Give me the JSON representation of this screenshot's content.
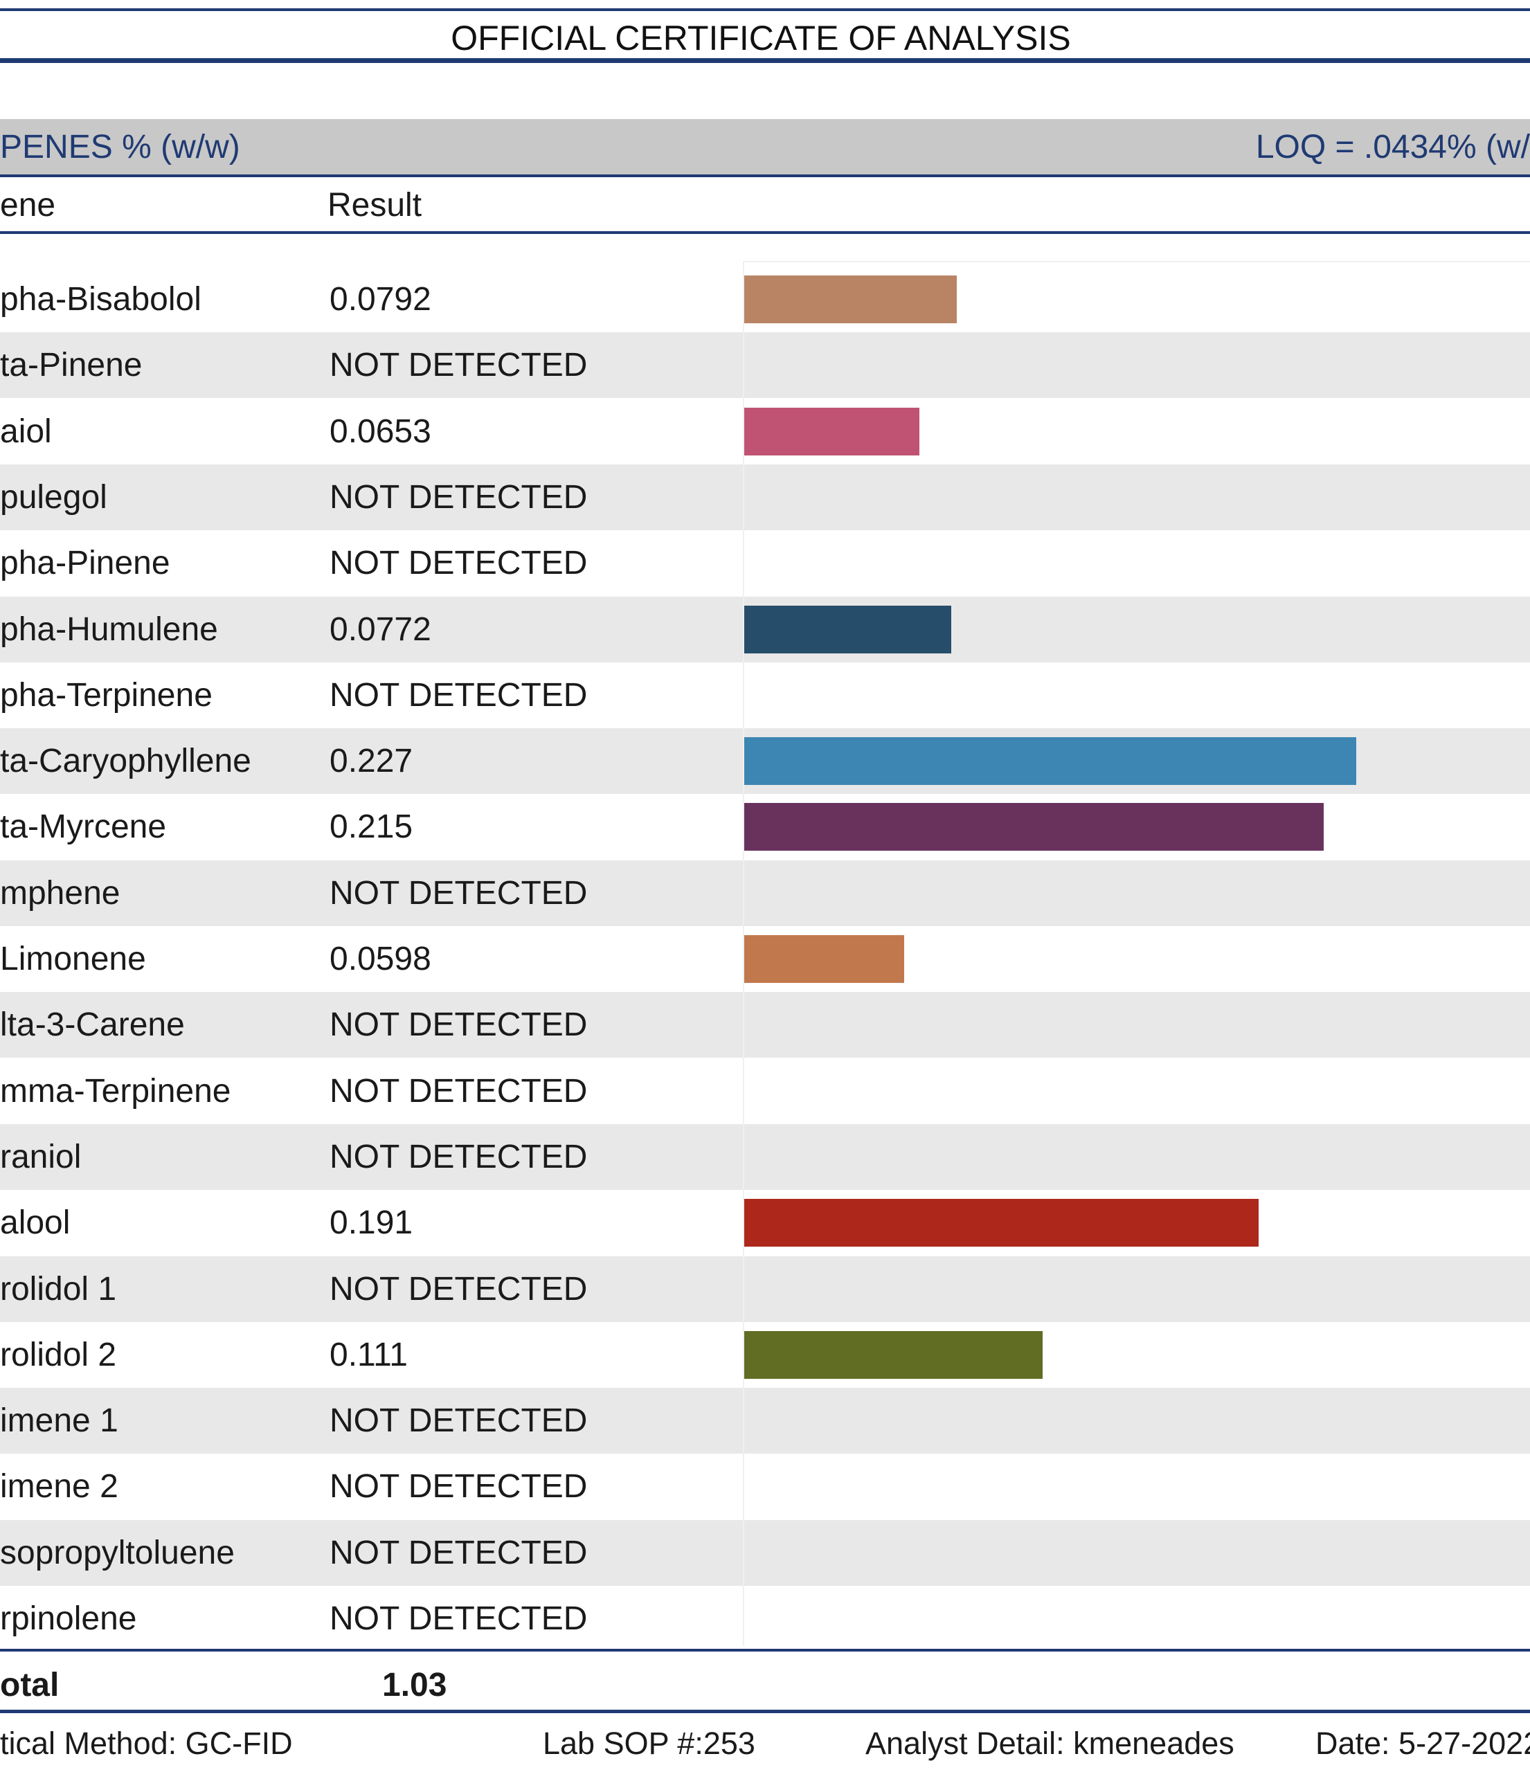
{
  "title": "OFFICIAL CERTIFICATE OF ANALYSIS",
  "section": {
    "label": "PENES % (w/w)",
    "loq": "LOQ = .0434% (w/"
  },
  "columns": {
    "name": "ene",
    "result": "Result"
  },
  "rows": [
    {
      "name": "pha-Bisabolol",
      "result": "0.0792",
      "value": 0.0792,
      "color": "#b88464"
    },
    {
      "name": "ta-Pinene",
      "result": "NOT DETECTED",
      "value": 0,
      "color": ""
    },
    {
      "name": "aiol",
      "result": "0.0653",
      "value": 0.0653,
      "color": "#c05373"
    },
    {
      "name": "pulegol",
      "result": "NOT DETECTED",
      "value": 0,
      "color": ""
    },
    {
      "name": "pha-Pinene",
      "result": "NOT DETECTED",
      "value": 0,
      "color": ""
    },
    {
      "name": "pha-Humulene",
      "result": "0.0772",
      "value": 0.0772,
      "color": "#264e6a"
    },
    {
      "name": "pha-Terpinene",
      "result": "NOT DETECTED",
      "value": 0,
      "color": ""
    },
    {
      "name": "ta-Caryophyllene",
      "result": "0.227",
      "value": 0.227,
      "color": "#3d85b2"
    },
    {
      "name": "ta-Myrcene",
      "result": "0.215",
      "value": 0.215,
      "color": "#68325d"
    },
    {
      "name": "mphene",
      "result": "NOT DETECTED",
      "value": 0,
      "color": ""
    },
    {
      "name": "Limonene",
      "result": "0.0598",
      "value": 0.0598,
      "color": "#c2784d"
    },
    {
      "name": "lta-3-Carene",
      "result": "NOT DETECTED",
      "value": 0,
      "color": ""
    },
    {
      "name": "mma-Terpinene",
      "result": "NOT DETECTED",
      "value": 0,
      "color": ""
    },
    {
      "name": "raniol",
      "result": "NOT DETECTED",
      "value": 0,
      "color": ""
    },
    {
      "name": "alool",
      "result": "0.191",
      "value": 0.191,
      "color": "#ad271b"
    },
    {
      "name": "rolidol 1",
      "result": "NOT DETECTED",
      "value": 0,
      "color": ""
    },
    {
      "name": "rolidol 2",
      "result": "0.111",
      "value": 0.111,
      "color": "#606d22"
    },
    {
      "name": "imene 1",
      "result": "NOT DETECTED",
      "value": 0,
      "color": ""
    },
    {
      "name": "imene 2",
      "result": "NOT DETECTED",
      "value": 0,
      "color": ""
    },
    {
      "name": "sopropyltoluene",
      "result": "NOT DETECTED",
      "value": 0,
      "color": ""
    },
    {
      "name": "rpinolene",
      "result": "NOT DETECTED",
      "value": 0,
      "color": ""
    }
  ],
  "total": {
    "label": "otal",
    "value": "1.03"
  },
  "footer": {
    "method": "tical Method: GC-FID",
    "sop": "Lab SOP #:253",
    "analyst": "Analyst Detail: kmeneades",
    "date": "Date: 5-27-2022"
  },
  "chart_data": {
    "type": "bar",
    "orientation": "horizontal",
    "categories": [
      "pha-Bisabolol",
      "ta-Pinene",
      "aiol",
      "pulegol",
      "pha-Pinene",
      "pha-Humulene",
      "pha-Terpinene",
      "ta-Caryophyllene",
      "ta-Myrcene",
      "mphene",
      "Limonene",
      "lta-3-Carene",
      "mma-Terpinene",
      "raniol",
      "alool",
      "rolidol 1",
      "rolidol 2",
      "imene 1",
      "imene 2",
      "sopropyltoluene",
      "rpinolene"
    ],
    "values": [
      0.0792,
      0,
      0.0653,
      0,
      0,
      0.0772,
      0,
      0.227,
      0.215,
      0,
      0.0598,
      0,
      0,
      0,
      0.191,
      0,
      0.111,
      0,
      0,
      0,
      0
    ],
    "xlim": [
      0,
      0.27
    ]
  }
}
